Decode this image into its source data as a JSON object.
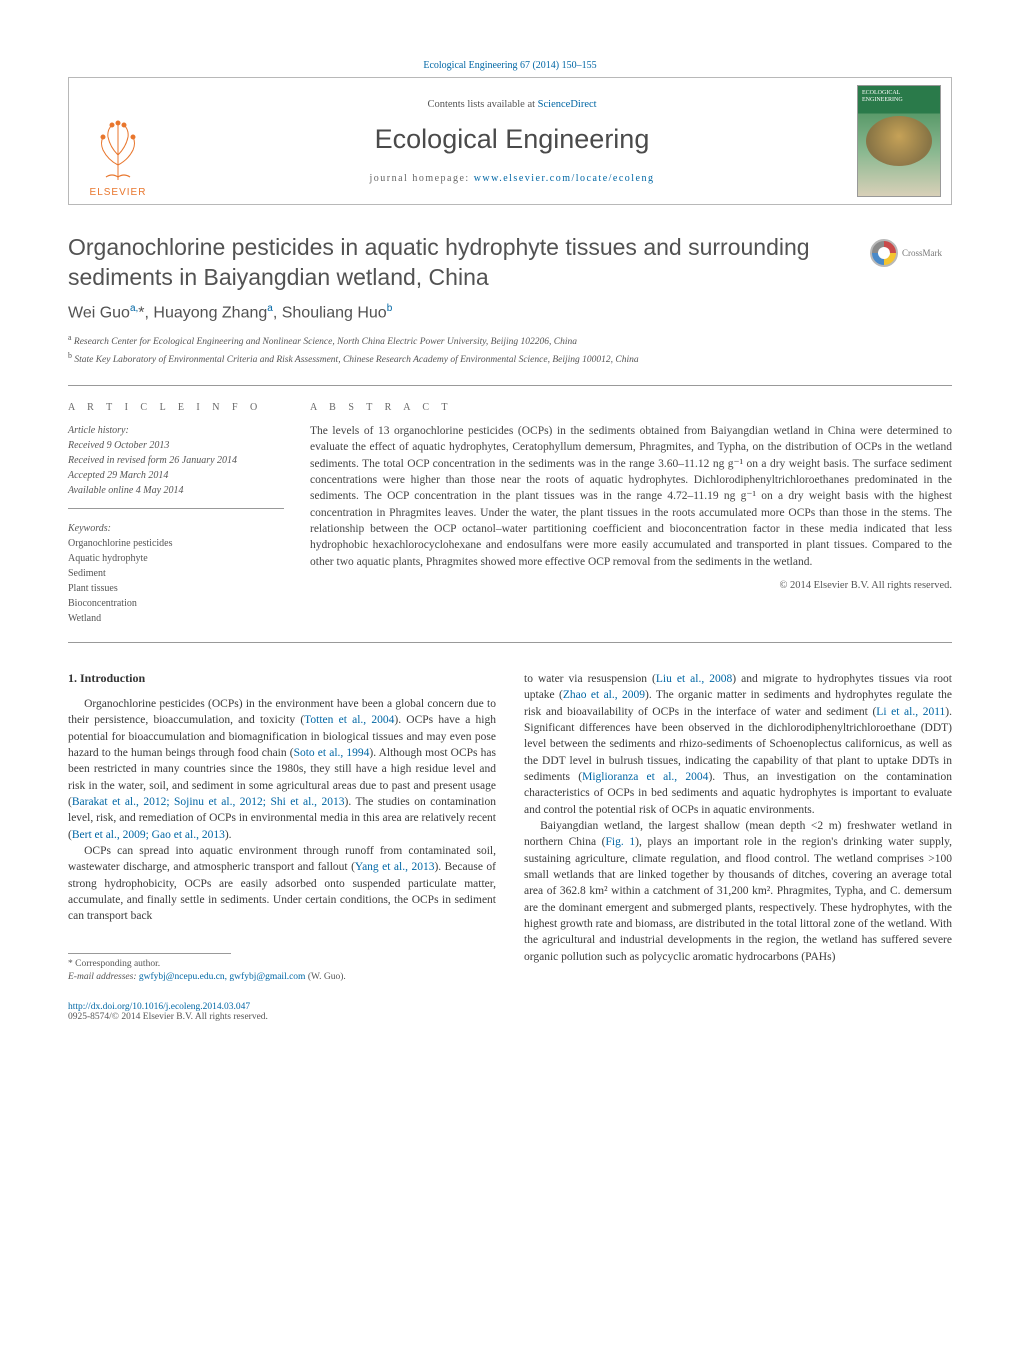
{
  "header": {
    "citation": "Ecological Engineering 67 (2014) 150–155",
    "contents_prefix": "Contents lists available at ",
    "contents_link": "ScienceDirect",
    "journal": "Ecological Engineering",
    "homepage_prefix": "journal homepage: ",
    "homepage_url": "www.elsevier.com/locate/ecoleng",
    "publisher": "ELSEVIER"
  },
  "crossmark_label": "CrossMark",
  "title": "Organochlorine pesticides in aquatic hydrophyte tissues and surrounding sediments in Baiyangdian wetland, China",
  "authors_html": "Wei Guo<sup>a,</sup>*, Huayong Zhang<sup>a</sup>, Shouliang Huo<sup>b</sup>",
  "affiliations": [
    "a Research Center for Ecological Engineering and Nonlinear Science, North China Electric Power University, Beijing 102206, China",
    "b State Key Laboratory of Environmental Criteria and Risk Assessment, Chinese Research Academy of Environmental Science, Beijing 100012, China"
  ],
  "article_info_label": "A R T I C L E   I N F O",
  "abstract_label": "A B S T R A C T",
  "history": {
    "label": "Article history:",
    "received": "Received 9 October 2013",
    "revised": "Received in revised form 26 January 2014",
    "accepted": "Accepted 29 March 2014",
    "online": "Available online 4 May 2014"
  },
  "keywords_label": "Keywords:",
  "keywords": [
    "Organochlorine pesticides",
    "Aquatic hydrophyte",
    "Sediment",
    "Plant tissues",
    "Bioconcentration",
    "Wetland"
  ],
  "abstract": "The levels of 13 organochlorine pesticides (OCPs) in the sediments obtained from Baiyangdian wetland in China were determined to evaluate the effect of aquatic hydrophytes, Ceratophyllum demersum, Phragmites, and Typha, on the distribution of OCPs in the wetland sediments. The total OCP concentration in the sediments was in the range 3.60–11.12 ng g⁻¹ on a dry weight basis. The surface sediment concentrations were higher than those near the roots of aquatic hydrophytes. Dichlorodiphenyltrichloroethanes predominated in the sediments. The OCP concentration in the plant tissues was in the range 4.72–11.19 ng g⁻¹ on a dry weight basis with the highest concentration in Phragmites leaves. Under the water, the plant tissues in the roots accumulated more OCPs than those in the stems. The relationship between the OCP octanol–water partitioning coefficient and bioconcentration factor in these media indicated that less hydrophobic hexachlorocyclohexane and endosulfans were more easily accumulated and transported in plant tissues. Compared to the other two aquatic plants, Phragmites showed more effective OCP removal from the sediments in the wetland.",
  "copyright": "© 2014 Elsevier B.V. All rights reserved.",
  "intro_heading": "1. Introduction",
  "left_paras": [
    "Organochlorine pesticides (OCPs) in the environment have been a global concern due to their persistence, bioaccumulation, and toxicity (<a>Totten et al., 2004</a>). OCPs have a high potential for bioaccumulation and biomagnification in biological tissues and may even pose hazard to the human beings through food chain (<a>Soto et al., 1994</a>). Although most OCPs has been restricted in many countries since the 1980s, they still have a high residue level and risk in the water, soil, and sediment in some agricultural areas due to past and present usage (<a>Barakat et al., 2012; Sojinu et al., 2012; Shi et al., 2013</a>). The studies on contamination level, risk, and remediation of OCPs in environmental media in this area are relatively recent (<a>Bert et al., 2009; Gao et al., 2013</a>).",
    "OCPs can spread into aquatic environment through runoff from contaminated soil, wastewater discharge, and atmospheric transport and fallout (<a>Yang et al., 2013</a>). Because of strong hydrophobicity, OCPs are easily adsorbed onto suspended particulate matter, accumulate, and finally settle in sediments. Under certain conditions, the OCPs in sediment can transport back"
  ],
  "right_paras": [
    "to water via resuspension (<a>Liu et al., 2008</a>) and migrate to hydrophytes tissues via root uptake (<a>Zhao et al., 2009</a>). The organic matter in sediments and hydrophytes regulate the risk and bioavailability of OCPs in the interface of water and sediment (<a>Li et al., 2011</a>). Significant differences have been observed in the dichlorodiphenyltrichloroethane (DDT) level between the sediments and rhizo-sediments of Schoenoplectus californicus, as well as the DDT level in bulrush tissues, indicating the capability of that plant to uptake DDTs in sediments (<a>Miglioranza et al., 2004</a>). Thus, an investigation on the contamination characteristics of OCPs in bed sediments and aquatic hydrophytes is important to evaluate and control the potential risk of OCPs in aquatic environments.",
    "Baiyangdian wetland, the largest shallow (mean depth <2 m) freshwater wetland in northern China (<a>Fig. 1</a>), plays an important role in the region's drinking water supply, sustaining agriculture, climate regulation, and flood control. The wetland comprises >100 small wetlands that are linked together by thousands of ditches, covering an average total area of 362.8 km² within a catchment of 31,200 km². Phragmites, Typha, and C. demersum are the dominant emergent and submerged plants, respectively. These hydrophytes, with the highest growth rate and biomass, are distributed in the total littoral zone of the wetland. With the agricultural and industrial developments in the region, the wetland has suffered severe organic pollution such as polycyclic aromatic hydrocarbons (PAHs)"
  ],
  "corresponding": "* Corresponding author.",
  "email_label": "E-mail addresses: ",
  "emails": "gwfybj@ncepu.edu.cn, gwfybj@gmail.com",
  "email_author": " (W. Guo).",
  "doi": "http://dx.doi.org/10.1016/j.ecoleng.2014.03.047",
  "issn_line": "0925-8574/© 2014 Elsevier B.V. All rights reserved.",
  "colors": {
    "link": "#0066a4",
    "elsevier": "#e8762d",
    "text": "#3a3a3a",
    "rule": "#999999"
  }
}
